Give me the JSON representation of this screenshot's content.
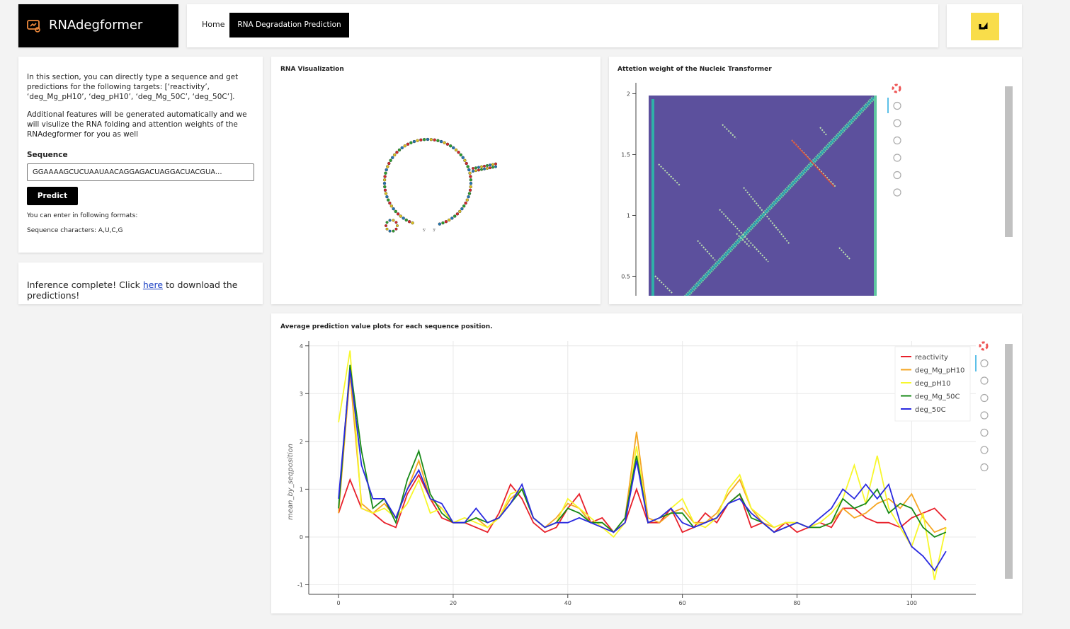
{
  "header": {
    "brand": "RNAdegformer",
    "nav": [
      "Home",
      "RNA Degradation Prediction"
    ]
  },
  "input_panel": {
    "intro": "In this section, you can directly type a sequence and get predictions for the following targets: [‘reactivity’, ‘deg_Mg_pH10’, ‘deg_pH10’, ‘deg_Mg_50C’, ‘deg_50C’].",
    "features": "Additional features will be generated automatically and we will visulize the RNA folding and attention weights of the RNAdegformer for you as well",
    "sequence_label": "Sequence",
    "sequence_value": "GGAAAAGCUCUAAUAACAGGAGACUAGGACUACGUA...",
    "button": "Predict",
    "formats": "You can enter in following formats:",
    "characters": "Sequence characters: A,U,C,G"
  },
  "inference": {
    "before": "Inference complete! Click ",
    "link": "here",
    "after": " to download the predictions!"
  },
  "rna_panel": {
    "title": "RNA Visualization",
    "five_prime": "5'",
    "three_prime": "3'"
  },
  "attention_plot": {
    "title": "Attetion weight of the Nucleic Transformer",
    "ylim": [
      0.34,
      2.09
    ],
    "yticks": [
      2,
      1.5,
      1,
      0.5
    ]
  },
  "chart_data": {
    "type": "line",
    "title": "Average prediction value plots for each sequence position.",
    "ylabel": "mean_by_seqposition",
    "xlim": [
      -5.2,
      111.2
    ],
    "ylim": [
      -1.2,
      4.1
    ],
    "xticks": [
      0,
      20,
      40,
      60,
      80,
      100
    ],
    "yticks": [
      -1,
      0,
      1,
      2,
      3,
      4
    ],
    "grid": true,
    "legend": "top-right",
    "x": [
      0,
      2,
      4,
      6,
      8,
      10,
      12,
      14,
      16,
      18,
      20,
      22,
      24,
      26,
      28,
      30,
      32,
      34,
      36,
      38,
      40,
      42,
      44,
      46,
      48,
      50,
      52,
      54,
      56,
      58,
      60,
      62,
      64,
      66,
      68,
      70,
      72,
      74,
      76,
      78,
      80,
      82,
      84,
      86,
      88,
      90,
      92,
      94,
      96,
      98,
      100,
      102,
      104,
      106
    ],
    "series": [
      {
        "name": "reactivity",
        "color": "#e8202a",
        "values": [
          0.5,
          1.2,
          0.6,
          0.5,
          0.3,
          0.2,
          0.9,
          1.3,
          0.8,
          0.4,
          0.3,
          0.3,
          0.2,
          0.1,
          0.5,
          1.1,
          0.8,
          0.3,
          0.1,
          0.2,
          0.6,
          0.9,
          0.3,
          0.4,
          0.1,
          0.3,
          1.0,
          0.3,
          0.3,
          0.6,
          0.1,
          0.2,
          0.5,
          0.3,
          0.7,
          0.9,
          0.2,
          0.3,
          0.1,
          0.3,
          0.1,
          0.2,
          0.3,
          0.2,
          0.6,
          0.6,
          0.4,
          0.3,
          0.3,
          0.2,
          0.4,
          0.5,
          0.6,
          0.35
        ]
      },
      {
        "name": "deg_Mg_pH10",
        "color": "#f5a623",
        "values": [
          0.5,
          3.4,
          0.7,
          0.5,
          0.7,
          0.4,
          1.0,
          1.6,
          0.8,
          0.6,
          0.3,
          0.3,
          0.4,
          0.2,
          0.4,
          0.8,
          1.0,
          0.4,
          0.2,
          0.4,
          0.7,
          0.6,
          0.3,
          0.3,
          0.1,
          0.4,
          2.2,
          0.4,
          0.3,
          0.5,
          0.6,
          0.3,
          0.3,
          0.5,
          0.9,
          1.2,
          0.6,
          0.3,
          0.2,
          0.3,
          0.3,
          0.2,
          0.2,
          0.3,
          0.6,
          0.4,
          0.5,
          0.7,
          0.8,
          0.6,
          0.9,
          0.4,
          0.1,
          0.2
        ]
      },
      {
        "name": "deg_pH10",
        "color": "#f7f72c",
        "values": [
          2.4,
          3.9,
          0.6,
          0.5,
          0.6,
          0.4,
          0.7,
          1.2,
          0.5,
          0.6,
          0.3,
          0.4,
          0.3,
          0.2,
          0.4,
          0.9,
          1.0,
          0.4,
          0.2,
          0.3,
          0.8,
          0.6,
          0.4,
          0.2,
          0.0,
          0.3,
          1.9,
          0.3,
          0.4,
          0.6,
          0.8,
          0.3,
          0.2,
          0.4,
          1.0,
          1.3,
          0.6,
          0.4,
          0.2,
          0.3,
          0.3,
          0.2,
          0.3,
          0.5,
          0.8,
          1.5,
          0.7,
          1.7,
          0.6,
          0.2,
          -0.2,
          0.5,
          -0.9,
          0.2
        ]
      },
      {
        "name": "deg_Mg_50C",
        "color": "#178a17",
        "values": [
          0.6,
          3.6,
          1.8,
          0.6,
          0.8,
          0.3,
          1.2,
          1.8,
          0.9,
          0.5,
          0.3,
          0.3,
          0.4,
          0.3,
          0.4,
          0.7,
          1.0,
          0.4,
          0.2,
          0.3,
          0.6,
          0.5,
          0.3,
          0.3,
          0.1,
          0.4,
          1.7,
          0.3,
          0.4,
          0.5,
          0.5,
          0.2,
          0.3,
          0.4,
          0.7,
          0.9,
          0.4,
          0.3,
          0.1,
          0.2,
          0.3,
          0.2,
          0.2,
          0.3,
          0.8,
          0.6,
          0.7,
          1.0,
          0.5,
          0.7,
          0.6,
          0.2,
          0.0,
          0.1
        ]
      },
      {
        "name": "deg_50C",
        "color": "#2a2ae0",
        "values": [
          0.8,
          3.5,
          1.5,
          0.8,
          0.8,
          0.4,
          1.0,
          1.4,
          0.8,
          0.7,
          0.3,
          0.3,
          0.6,
          0.3,
          0.4,
          0.7,
          1.1,
          0.4,
          0.2,
          0.3,
          0.3,
          0.4,
          0.3,
          0.2,
          0.1,
          0.3,
          1.6,
          0.3,
          0.4,
          0.6,
          0.3,
          0.2,
          0.3,
          0.4,
          0.7,
          0.8,
          0.5,
          0.3,
          0.1,
          0.2,
          0.3,
          0.2,
          0.4,
          0.6,
          1.0,
          0.8,
          1.1,
          0.8,
          1.1,
          0.3,
          -0.2,
          -0.4,
          -0.7,
          -0.3
        ]
      }
    ]
  }
}
